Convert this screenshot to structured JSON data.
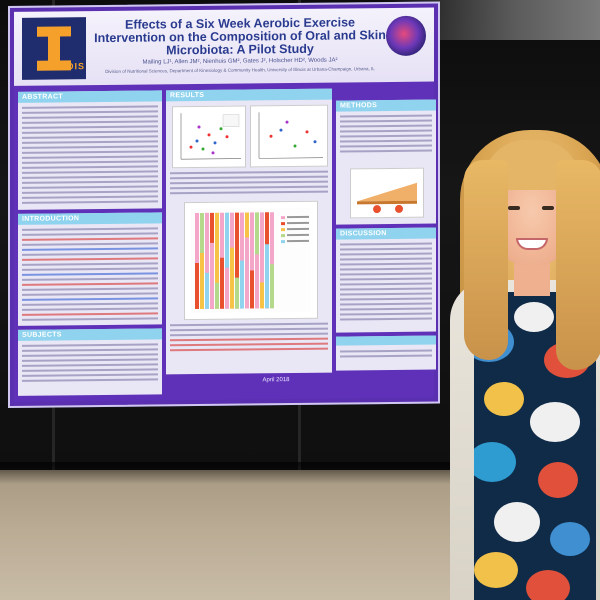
{
  "poster": {
    "logo_text": "ILLINOIS",
    "title": "Effects of a Six Week Aerobic Exercise Intervention on the Composition of Oral and Skin Microbiota: A Pilot Study",
    "authors": "Mailing LJ¹, Allen JM², Nienhuis GM², Gates J², Holscher HD², Woods JA²",
    "affiliation": "Division of Nutritional Sciences, Department of Kinesiology & Community Health, University of Illinois at Urbana-Champaign, Urbana, IL",
    "sections": {
      "abstract": "ABSTRACT",
      "introduction": "INTRODUCTION",
      "subjects": "SUBJECTS",
      "results": "RESULTS",
      "methods": "METHODS",
      "discussion": "DISCUSSION"
    },
    "footer_date": "April 2018"
  },
  "colors": {
    "poster_border": "#5f31b8",
    "section_header": "#8fd3ee",
    "title_text": "#2a3b8f",
    "logo_orange": "#f5a02a",
    "logo_navy": "#1f2c6d"
  }
}
